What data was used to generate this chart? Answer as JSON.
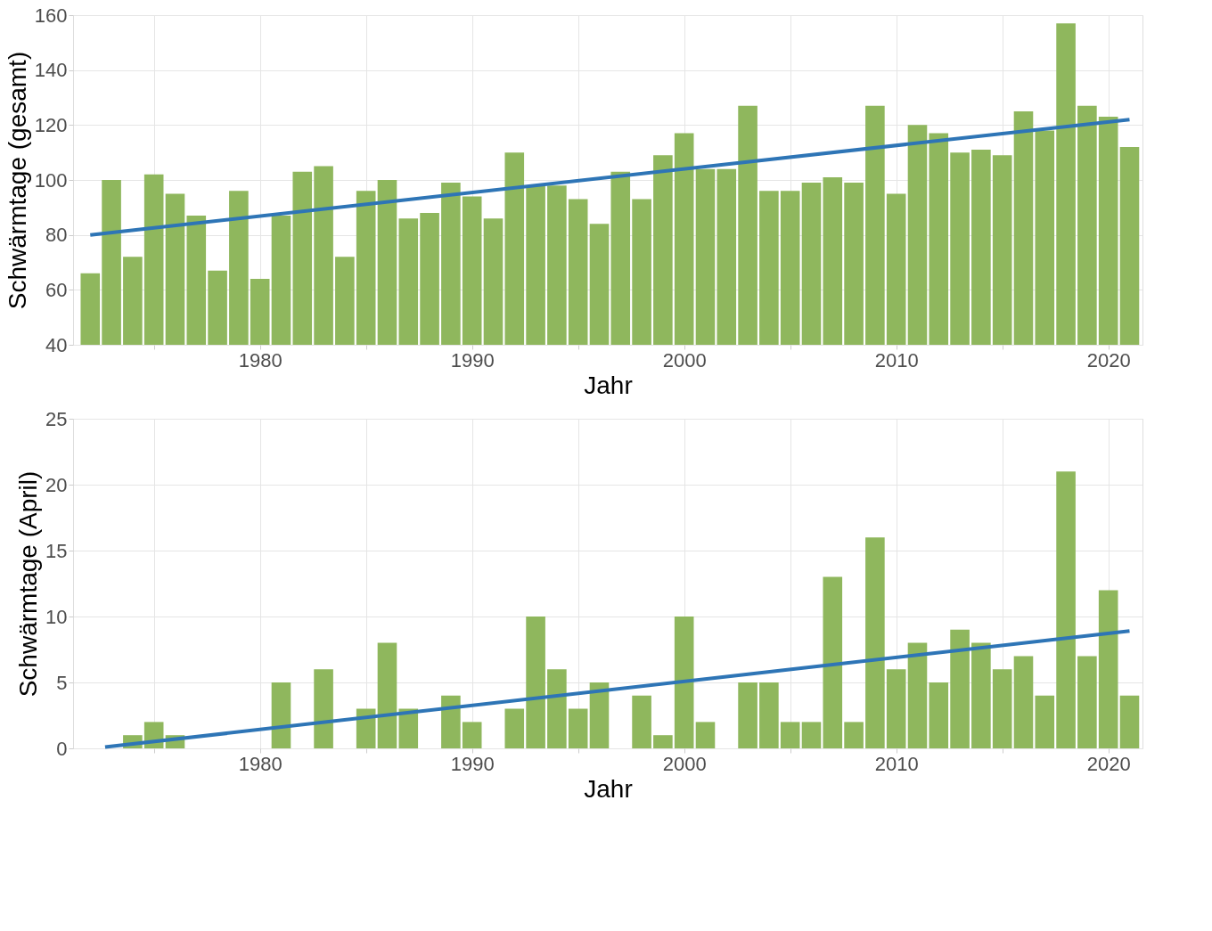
{
  "chart_data": [
    {
      "type": "bar",
      "xlabel": "Jahr",
      "ylabel": "Schwärmtage (gesamt)",
      "xlim": [
        1971.4,
        2021.4
      ],
      "ylim": [
        40,
        160
      ],
      "xticks": [
        {
          "value": 1975,
          "label": null
        },
        1980,
        {
          "value": 1985,
          "label": null
        },
        1990,
        {
          "value": 1995,
          "label": null
        },
        2000,
        {
          "value": 2005,
          "label": null
        },
        2010,
        {
          "value": 2015,
          "label": null
        },
        2020
      ],
      "yticks": [
        40,
        60,
        80,
        100,
        120,
        140,
        160
      ],
      "grid": true,
      "series": [
        {
          "color": "#8fb75d",
          "x": [
            1972,
            1973,
            1974,
            1975,
            1976,
            1977,
            1978,
            1979,
            1980,
            1981,
            1982,
            1983,
            1984,
            1985,
            1986,
            1987,
            1988,
            1989,
            1990,
            1991,
            1992,
            1993,
            1994,
            1995,
            1996,
            1997,
            1998,
            1999,
            2000,
            2001,
            2002,
            2003,
            2004,
            2005,
            2006,
            2007,
            2008,
            2009,
            2010,
            2011,
            2012,
            2013,
            2014,
            2015,
            2016,
            2017,
            2018,
            2019,
            2020,
            2021
          ],
          "values": [
            66,
            100,
            72,
            102,
            95,
            87,
            67,
            96,
            64,
            87,
            103,
            105,
            72,
            96,
            100,
            86,
            88,
            99,
            94,
            86,
            110,
            98,
            98,
            93,
            84,
            103,
            93,
            109,
            117,
            104,
            104,
            127,
            96,
            96,
            99,
            101,
            99,
            127,
            95,
            120,
            117,
            110,
            111,
            109,
            125,
            118,
            157,
            127,
            123,
            112
          ]
        },
        {
          "type": "line",
          "color": "#2e75b6",
          "x": [
            1972,
            2021
          ],
          "values": [
            80,
            122
          ]
        }
      ]
    },
    {
      "type": "bar",
      "xlabel": "Jahr",
      "ylabel": "Schwärmtage (April)",
      "xlim": [
        1971.4,
        2021.4
      ],
      "ylim": [
        0,
        25
      ],
      "xticks": [
        {
          "value": 1975,
          "label": null
        },
        1980,
        {
          "value": 1985,
          "label": null
        },
        1990,
        {
          "value": 1995,
          "label": null
        },
        2000,
        {
          "value": 2005,
          "label": null
        },
        2010,
        {
          "value": 2015,
          "label": null
        },
        2020
      ],
      "yticks": [
        0,
        5,
        10,
        15,
        20,
        25
      ],
      "grid": true,
      "series": [
        {
          "color": "#8fb75d",
          "x": [
            1972,
            1973,
            1974,
            1975,
            1976,
            1977,
            1978,
            1979,
            1980,
            1981,
            1982,
            1983,
            1984,
            1985,
            1986,
            1987,
            1988,
            1989,
            1990,
            1991,
            1992,
            1993,
            1994,
            1995,
            1996,
            1997,
            1998,
            1999,
            2000,
            2001,
            2002,
            2003,
            2004,
            2005,
            2006,
            2007,
            2008,
            2009,
            2010,
            2011,
            2012,
            2013,
            2014,
            2015,
            2016,
            2017,
            2018,
            2019,
            2020,
            2021
          ],
          "values": [
            0,
            0,
            1,
            2,
            1,
            0,
            0,
            0,
            0,
            5,
            0,
            6,
            0,
            3,
            8,
            3,
            0,
            4,
            2,
            0,
            3,
            10,
            6,
            3,
            5,
            0,
            4,
            1,
            10,
            2,
            0,
            5,
            5,
            2,
            2,
            13,
            2,
            16,
            6,
            8,
            5,
            9,
            8,
            6,
            7,
            4,
            21,
            7,
            12,
            4
          ]
        },
        {
          "type": "line",
          "color": "#2e75b6",
          "x": [
            1972.7,
            2021
          ],
          "values": [
            0.1,
            8.9
          ]
        }
      ]
    }
  ]
}
